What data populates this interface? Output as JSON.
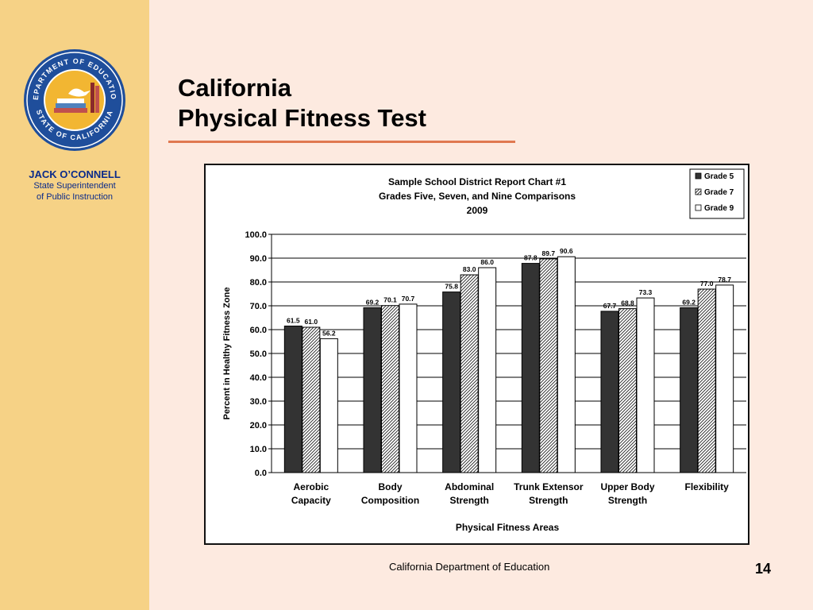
{
  "sidebar": {
    "seal": {
      "top_text": "DEPARTMENT OF EDUCATION",
      "bottom_text": "STATE OF CALIFORNIA",
      "colors": {
        "ring": "#1f4e9b",
        "gold": "#f2b632"
      }
    },
    "person_name": "JACK O’CONNELL",
    "person_role_line1": "State Superintendent",
    "person_role_line2": "of Public Instruction"
  },
  "slide": {
    "title_line1": "California",
    "title_line2": "Physical Fitness Test",
    "footer": "California Department of Education",
    "page_number": "14"
  },
  "chart_data": {
    "type": "bar",
    "title_lines": [
      "Sample School District Report Chart #1",
      "Grades Five, Seven, and Nine Comparisons",
      "2009"
    ],
    "xlabel": "Physical Fitness Areas",
    "ylabel": "Percent in Healthy Fitness Zone",
    "ylim": [
      0,
      100
    ],
    "yticks": [
      "0.0",
      "10.0",
      "20.0",
      "30.0",
      "40.0",
      "50.0",
      "60.0",
      "70.0",
      "80.0",
      "90.0",
      "100.0"
    ],
    "grid": true,
    "legend_position": "top-right",
    "categories": [
      [
        "Aerobic",
        "Capacity"
      ],
      [
        "Body",
        "Composition"
      ],
      [
        "Abdominal",
        "Strength"
      ],
      [
        "Trunk Extensor",
        "Strength"
      ],
      [
        "Upper Body",
        "Strength"
      ],
      [
        "Flexibility"
      ]
    ],
    "series": [
      {
        "name": "Grade 5",
        "values": [
          61.5,
          69.2,
          75.8,
          87.8,
          67.7,
          69.2
        ],
        "labels": [
          "61.5",
          "69.2",
          "75.8",
          "87.8",
          "67.7",
          "69.2"
        ],
        "fill": "#333333",
        "pattern": "solid"
      },
      {
        "name": "Grade 7",
        "values": [
          61.0,
          70.1,
          83.0,
          89.7,
          68.8,
          77.0
        ],
        "labels": [
          "61.0",
          "70.1",
          "83.0",
          "89.7",
          "68.8",
          "77.0"
        ],
        "fill": "#ffffff",
        "pattern": "hatch"
      },
      {
        "name": "Grade 9",
        "values": [
          56.2,
          70.7,
          86.0,
          90.6,
          73.3,
          78.7
        ],
        "labels": [
          "56.2",
          "70.7",
          "86.0",
          "90.6",
          "73.3",
          "78.7"
        ],
        "fill": "#ffffff",
        "pattern": "empty"
      }
    ]
  }
}
